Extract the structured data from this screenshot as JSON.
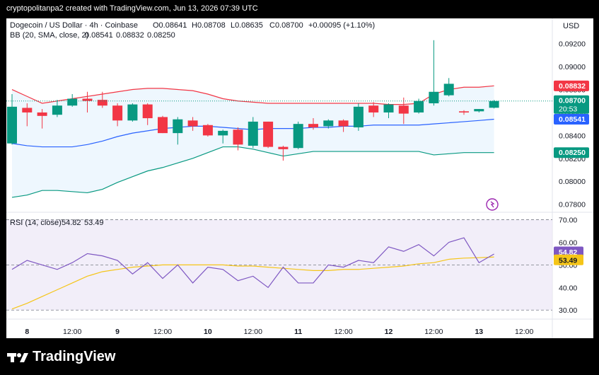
{
  "attribution": "cryptopolitanpa2 created with TradingView.com, Jun 13, 2026 07:39 UTC",
  "footer": {
    "logo_text": "TradingView"
  },
  "legend": {
    "symbol": "Dogecoin / US Dollar · 4h · Coinbase",
    "open": "O0.08641",
    "high": "H0.08708",
    "low": "L0.08635",
    "close": "C0.08700",
    "change": "+0.00095 (+1.10%)",
    "bb_label": "BB (20, SMA, close, 2)",
    "bb_basis": "0.08541",
    "bb_upper": "0.08832",
    "bb_lower": "0.08250",
    "rsi_label": "RSI (14, close)",
    "rsi_value": "54.82",
    "rsi_ma": "53.49"
  },
  "price_axis_unit": "USD",
  "price_ticks": [
    "0.09200",
    "0.09000",
    "0.08800",
    "0.08600",
    "0.08400",
    "0.08200",
    "0.08000",
    "0.07800"
  ],
  "price_tick_values": [
    0.092,
    0.09,
    0.088,
    0.086,
    0.084,
    0.082,
    0.08,
    0.078
  ],
  "rsi_ticks": [
    "70.00",
    "60.00",
    "50.00",
    "40.00",
    "30.00"
  ],
  "rsi_tick_values": [
    70,
    60,
    50,
    40,
    30
  ],
  "time_ticks": [
    "8",
    "12:00",
    "9",
    "12:00",
    "10",
    "12:00",
    "11",
    "12:00",
    "12",
    "12:00",
    "13",
    "12:00"
  ],
  "time_tick_bars": [
    1,
    4,
    7,
    10,
    13,
    16,
    19,
    22,
    25,
    28,
    31,
    34
  ],
  "price_badges": [
    {
      "text": "0.08832",
      "value": 0.08832,
      "color": "#f23645"
    },
    {
      "text": "0.08700",
      "value": 0.087,
      "color": "#089981",
      "sub": "20:53"
    },
    {
      "text": "0.08541",
      "value": 0.08541,
      "color": "#2962ff"
    },
    {
      "text": "0.08250",
      "value": 0.0825,
      "color": "#089981"
    }
  ],
  "rsi_badges": [
    {
      "text": "54.82",
      "value": 54.82,
      "color": "#7e57c2"
    },
    {
      "text": "53.49",
      "value": 53.49,
      "color": "#f5c518"
    }
  ],
  "colors": {
    "up": "#089981",
    "down": "#f23645",
    "bb_basis": "#2962ff",
    "bb_upper": "#f23645",
    "bb_lower": "#089981",
    "bb_fill": "#e3f2fd",
    "rsi_line": "#7e57c2",
    "rsi_ma": "#f5c518",
    "rsi_band": "#ede7f6"
  },
  "chart_data": {
    "type": "candlestick",
    "title": "Dogecoin / US Dollar · 4h · Coinbase",
    "ylim": [
      0.0773,
      0.0942
    ],
    "candles": [
      {
        "o": 0.0833,
        "h": 0.0876,
        "l": 0.0832,
        "c": 0.0865
      },
      {
        "o": 0.0864,
        "h": 0.0868,
        "l": 0.0848,
        "c": 0.086
      },
      {
        "o": 0.086,
        "h": 0.0863,
        "l": 0.0846,
        "c": 0.0857
      },
      {
        "o": 0.0858,
        "h": 0.0871,
        "l": 0.0856,
        "c": 0.0866
      },
      {
        "o": 0.0866,
        "h": 0.0876,
        "l": 0.0865,
        "c": 0.0872
      },
      {
        "o": 0.0872,
        "h": 0.0878,
        "l": 0.086,
        "c": 0.087
      },
      {
        "o": 0.0871,
        "h": 0.0878,
        "l": 0.0864,
        "c": 0.0866
      },
      {
        "o": 0.0866,
        "h": 0.0868,
        "l": 0.0848,
        "c": 0.0853
      },
      {
        "o": 0.0853,
        "h": 0.0868,
        "l": 0.0852,
        "c": 0.0867
      },
      {
        "o": 0.0867,
        "h": 0.0868,
        "l": 0.0849,
        "c": 0.0855
      },
      {
        "o": 0.0856,
        "h": 0.0857,
        "l": 0.0842,
        "c": 0.0842
      },
      {
        "o": 0.0842,
        "h": 0.0856,
        "l": 0.0832,
        "c": 0.0854
      },
      {
        "o": 0.0853,
        "h": 0.0856,
        "l": 0.0844,
        "c": 0.0848
      },
      {
        "o": 0.0849,
        "h": 0.085,
        "l": 0.0839,
        "c": 0.084
      },
      {
        "o": 0.084,
        "h": 0.0845,
        "l": 0.0833,
        "c": 0.0844
      },
      {
        "o": 0.0845,
        "h": 0.0847,
        "l": 0.0827,
        "c": 0.0832
      },
      {
        "o": 0.0831,
        "h": 0.0856,
        "l": 0.0829,
        "c": 0.0852
      },
      {
        "o": 0.0852,
        "h": 0.0852,
        "l": 0.0829,
        "c": 0.083
      },
      {
        "o": 0.083,
        "h": 0.0831,
        "l": 0.0818,
        "c": 0.0828
      },
      {
        "o": 0.0829,
        "h": 0.0852,
        "l": 0.0828,
        "c": 0.085
      },
      {
        "o": 0.085,
        "h": 0.0855,
        "l": 0.0845,
        "c": 0.0847
      },
      {
        "o": 0.0848,
        "h": 0.0854,
        "l": 0.0846,
        "c": 0.0853
      },
      {
        "o": 0.0853,
        "h": 0.0854,
        "l": 0.0843,
        "c": 0.0848
      },
      {
        "o": 0.0847,
        "h": 0.0868,
        "l": 0.0844,
        "c": 0.0865
      },
      {
        "o": 0.0866,
        "h": 0.0869,
        "l": 0.0856,
        "c": 0.086
      },
      {
        "o": 0.086,
        "h": 0.0868,
        "l": 0.0855,
        "c": 0.0867
      },
      {
        "o": 0.0866,
        "h": 0.0873,
        "l": 0.085,
        "c": 0.0859
      },
      {
        "o": 0.086,
        "h": 0.0872,
        "l": 0.0859,
        "c": 0.087
      },
      {
        "o": 0.0868,
        "h": 0.0923,
        "l": 0.0866,
        "c": 0.0878
      },
      {
        "o": 0.0875,
        "h": 0.089,
        "l": 0.0874,
        "c": 0.0885
      },
      {
        "o": 0.0861,
        "h": 0.0862,
        "l": 0.0858,
        "c": 0.086
      },
      {
        "o": 0.0861,
        "h": 0.0863,
        "l": 0.086,
        "c": 0.0863
      },
      {
        "o": 0.08641,
        "h": 0.08708,
        "l": 0.08635,
        "c": 0.087
      }
    ],
    "bb_upper": [
      0.088,
      0.0874,
      0.0868,
      0.087,
      0.0872,
      0.0874,
      0.0876,
      0.0878,
      0.088,
      0.0881,
      0.0881,
      0.088,
      0.0879,
      0.0876,
      0.0872,
      0.087,
      0.0869,
      0.0868,
      0.0868,
      0.0868,
      0.0868,
      0.0868,
      0.0868,
      0.0868,
      0.0868,
      0.0867,
      0.0867,
      0.0868,
      0.0876,
      0.088,
      0.0882,
      0.0882,
      0.08832
    ],
    "bb_basis": [
      0.0833,
      0.0831,
      0.083,
      0.083,
      0.083,
      0.0832,
      0.0835,
      0.0839,
      0.0842,
      0.0844,
      0.0846,
      0.0847,
      0.0848,
      0.0848,
      0.0847,
      0.0846,
      0.0845,
      0.0846,
      0.0846,
      0.0846,
      0.0847,
      0.0847,
      0.0848,
      0.0848,
      0.0849,
      0.0849,
      0.0849,
      0.0849,
      0.085,
      0.0851,
      0.0852,
      0.0853,
      0.08541
    ],
    "bb_lower": [
      0.0786,
      0.0788,
      0.0792,
      0.0792,
      0.0791,
      0.079,
      0.0793,
      0.0799,
      0.0804,
      0.0809,
      0.0812,
      0.0816,
      0.082,
      0.0825,
      0.083,
      0.083,
      0.0828,
      0.0825,
      0.0822,
      0.0824,
      0.0826,
      0.0826,
      0.0826,
      0.0826,
      0.0826,
      0.0826,
      0.0826,
      0.0826,
      0.0823,
      0.0824,
      0.0825,
      0.0825,
      0.0825
    ],
    "rsi": [
      48,
      52,
      50,
      48,
      51,
      55,
      54,
      52,
      46,
      51,
      44,
      50,
      42,
      49,
      48,
      43,
      45,
      40,
      49,
      42,
      42,
      50,
      49,
      52,
      51,
      58,
      56,
      59,
      54,
      60,
      62,
      51,
      54.82
    ],
    "rsi_ma": [
      30.5,
      33,
      36,
      39,
      42,
      45,
      47,
      48,
      49,
      49.5,
      50,
      50,
      50,
      50,
      50,
      49.5,
      49.5,
      49,
      48.5,
      48,
      47.5,
      47.5,
      48,
      48,
      48.5,
      49,
      49.5,
      50.5,
      51,
      52.5,
      53,
      53.2,
      53.49
    ],
    "rsi_levels": {
      "upper": 70,
      "middle": 50,
      "lower": 30
    },
    "rsi_ylim": [
      26,
      73
    ]
  }
}
